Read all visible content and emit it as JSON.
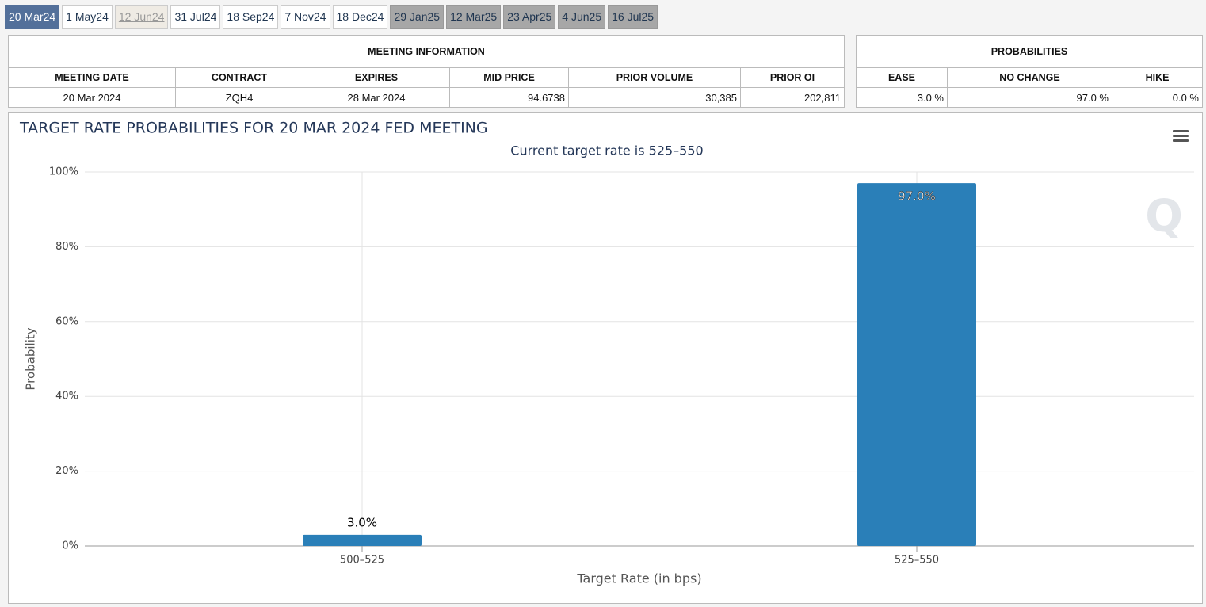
{
  "tabs": [
    "20 Mar24",
    "1 May24",
    "12 Jun24",
    "31 Jul24",
    "18 Sep24",
    "7 Nov24",
    "18 Dec24",
    "29 Jan25",
    "12 Mar25",
    "23 Apr25",
    "4 Jun25",
    "16 Jul25"
  ],
  "meeting_info": {
    "title": "MEETING INFORMATION",
    "headers": [
      "MEETING DATE",
      "CONTRACT",
      "EXPIRES",
      "MID PRICE",
      "PRIOR VOLUME",
      "PRIOR OI"
    ],
    "row": [
      "20 Mar 2024",
      "ZQH4",
      "28 Mar 2024",
      "94.6738",
      "30,385",
      "202,811"
    ]
  },
  "probabilities": {
    "title": "PROBABILITIES",
    "headers": [
      "EASE",
      "NO CHANGE",
      "HIKE"
    ],
    "row": [
      "3.0 %",
      "97.0 %",
      "0.0 %"
    ]
  },
  "chart_data": {
    "type": "bar",
    "title": "TARGET RATE PROBABILITIES FOR 20 MAR 2024 FED MEETING",
    "subtitle": "Current target rate is 525–550",
    "x_label": "Target Rate (in bps)",
    "y_label": "Probability",
    "categories": [
      "500–525",
      "525–550"
    ],
    "values": [
      3.0,
      97.0
    ],
    "value_labels": [
      "3.0%",
      "97.0%"
    ],
    "color": "#2a7fb8",
    "ylim": [
      0,
      100
    ],
    "yticks": [
      {
        "value": 0,
        "label": "0%"
      },
      {
        "value": 20,
        "label": "20%"
      },
      {
        "value": 40,
        "label": "40%"
      },
      {
        "value": 60,
        "label": "60%"
      },
      {
        "value": 80,
        "label": "80%"
      },
      {
        "value": 100,
        "label": "100%"
      }
    ],
    "grid": true
  }
}
